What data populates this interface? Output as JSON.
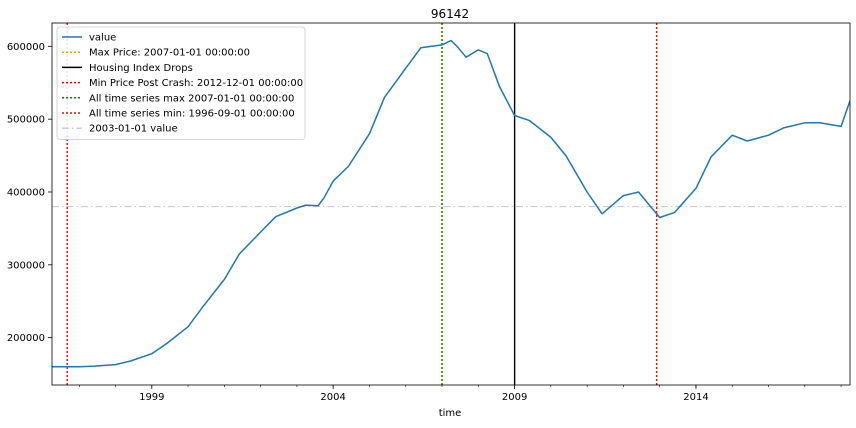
{
  "chart_data": {
    "type": "line",
    "title": "96142",
    "xlabel": "time",
    "ylabel": "",
    "xlim": [
      "1996-04-01",
      "2018-04-01"
    ],
    "ylim": [
      135000,
      632000
    ],
    "grid": false,
    "legend_position": "top-left",
    "x_ticks": [
      {
        "date": "1999-01-01",
        "label": "1999"
      },
      {
        "date": "2004-01-01",
        "label": "2004"
      },
      {
        "date": "2009-01-01",
        "label": "2009"
      },
      {
        "date": "2014-01-01",
        "label": "2014"
      }
    ],
    "y_ticks": [
      {
        "value": 200000,
        "label": "200000"
      },
      {
        "value": 300000,
        "label": "300000"
      },
      {
        "value": 400000,
        "label": "400000"
      },
      {
        "value": 500000,
        "label": "500000"
      },
      {
        "value": 600000,
        "label": "600000"
      }
    ],
    "series": [
      {
        "name": "value",
        "color": "#1f77b4",
        "points": [
          [
            "1996-04-01",
            160000
          ],
          [
            "1996-09-01",
            160000
          ],
          [
            "1997-01-01",
            160000
          ],
          [
            "1997-06-01",
            161000
          ],
          [
            "1998-01-01",
            163000
          ],
          [
            "1998-06-01",
            168000
          ],
          [
            "1999-01-01",
            178000
          ],
          [
            "1999-06-01",
            192000
          ],
          [
            "2000-01-01",
            215000
          ],
          [
            "2000-06-01",
            243000
          ],
          [
            "2001-01-01",
            280000
          ],
          [
            "2001-06-01",
            315000
          ],
          [
            "2002-01-01",
            345000
          ],
          [
            "2002-06-01",
            366000
          ],
          [
            "2003-01-01",
            378000
          ],
          [
            "2003-04-01",
            382000
          ],
          [
            "2003-08-01",
            381000
          ],
          [
            "2003-10-01",
            392000
          ],
          [
            "2004-01-01",
            415000
          ],
          [
            "2004-06-01",
            435000
          ],
          [
            "2005-01-01",
            480000
          ],
          [
            "2005-06-01",
            530000
          ],
          [
            "2006-01-01",
            570000
          ],
          [
            "2006-06-01",
            598000
          ],
          [
            "2007-01-01",
            602000
          ],
          [
            "2007-04-01",
            608000
          ],
          [
            "2007-06-01",
            600000
          ],
          [
            "2007-09-01",
            585000
          ],
          [
            "2008-01-01",
            595000
          ],
          [
            "2008-04-01",
            590000
          ],
          [
            "2008-08-01",
            545000
          ],
          [
            "2009-01-01",
            505000
          ],
          [
            "2009-06-01",
            498000
          ],
          [
            "2010-01-01",
            475000
          ],
          [
            "2010-06-01",
            450000
          ],
          [
            "2011-01-01",
            400000
          ],
          [
            "2011-06-01",
            370000
          ],
          [
            "2012-01-01",
            395000
          ],
          [
            "2012-06-01",
            400000
          ],
          [
            "2013-01-01",
            365000
          ],
          [
            "2013-06-01",
            372000
          ],
          [
            "2014-01-01",
            405000
          ],
          [
            "2014-06-01",
            448000
          ],
          [
            "2015-01-01",
            478000
          ],
          [
            "2015-06-01",
            470000
          ],
          [
            "2016-01-01",
            478000
          ],
          [
            "2016-06-01",
            488000
          ],
          [
            "2017-01-01",
            495000
          ],
          [
            "2017-06-01",
            495000
          ],
          [
            "2018-01-01",
            490000
          ],
          [
            "2018-04-01",
            525000
          ]
        ]
      }
    ],
    "vertical_lines": [
      {
        "name": "Max Price: 2007-01-01 00:00:00",
        "date": "2007-01-01",
        "color": "#ffa500",
        "style": "dotted"
      },
      {
        "name": "Housing Index Drops",
        "date": "2009-01-01",
        "color": "#000000",
        "style": "solid"
      },
      {
        "name": "Min Price Post Crash: 2012-12-01 00:00:00",
        "date": "2012-12-01",
        "color": "#ff0000",
        "style": "dotted"
      },
      {
        "name": "All time series max 2007-01-01 00:00:00",
        "date": "2007-01-01",
        "color": "#008000",
        "style": "dotted"
      },
      {
        "name": "All time series min: 1996-09-01 00:00:00",
        "date": "1996-09-01",
        "color": "#ff0000",
        "style": "dotted"
      }
    ],
    "horizontal_lines": [
      {
        "name": "2003-01-01 value",
        "value": 380000,
        "color": "#c8c8f0",
        "style": "dashdot"
      }
    ],
    "legend_entries": [
      {
        "label": "value",
        "color": "#1f77b4",
        "style": "solid"
      },
      {
        "label": "Max Price: 2007-01-01 00:00:00",
        "color": "#ffa500",
        "style": "dotted"
      },
      {
        "label": "Housing Index Drops",
        "color": "#000000",
        "style": "solid"
      },
      {
        "label": "Min Price Post Crash: 2012-12-01 00:00:00",
        "color": "#ff0000",
        "style": "dotted"
      },
      {
        "label": "All time series max 2007-01-01 00:00:00",
        "color": "#008000",
        "style": "dotted"
      },
      {
        "label": "All time series min: 1996-09-01 00:00:00",
        "color": "#ff0000",
        "style": "dotted"
      },
      {
        "label": "2003-01-01 value",
        "color": "#c8c8f0",
        "style": "dashdot"
      }
    ]
  }
}
